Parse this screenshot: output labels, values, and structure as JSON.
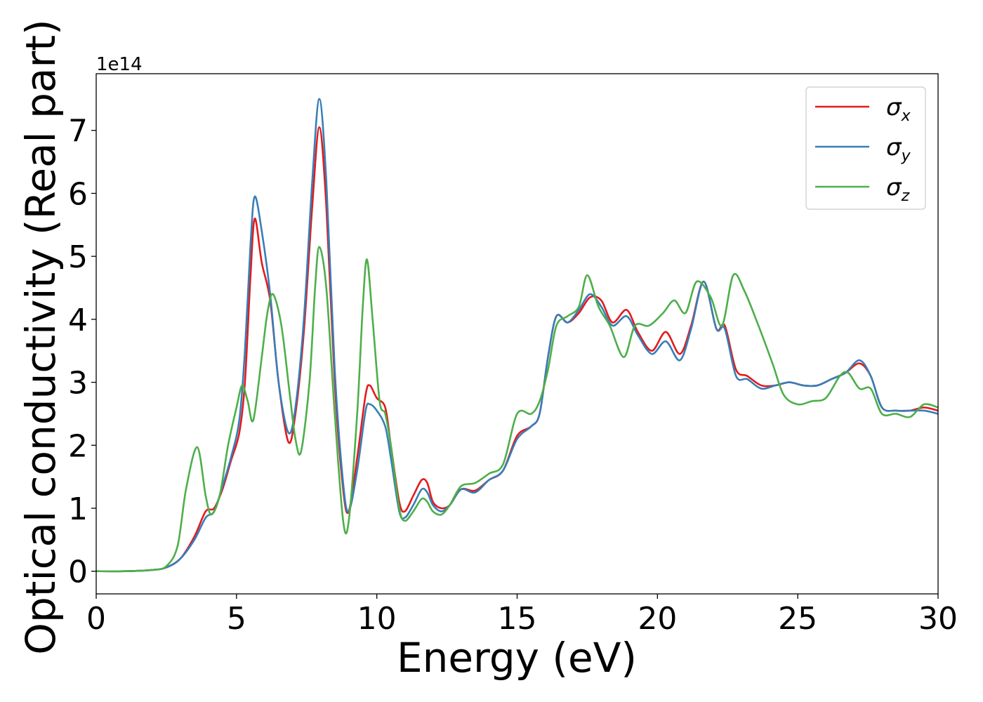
{
  "chart_data": {
    "type": "line",
    "title": "",
    "xlabel": "Energy (eV)",
    "ylabel": "Optical conductivity (Real part)",
    "y_offset_label": "1e14",
    "xlim": [
      0,
      30
    ],
    "ylim": [
      -0.36,
      7.9
    ],
    "x_ticks": [
      0,
      5,
      10,
      15,
      20,
      25,
      30
    ],
    "y_ticks": [
      0,
      1,
      2,
      3,
      4,
      5,
      6,
      7
    ],
    "grid": false,
    "legend_position": "top-right",
    "series": [
      {
        "name": "σx",
        "name_base": "σ",
        "name_sub": "x",
        "color": "#e41a1c",
        "points": [
          [
            0,
            0
          ],
          [
            1,
            0
          ],
          [
            2,
            0.02
          ],
          [
            2.5,
            0.06
          ],
          [
            3,
            0.2
          ],
          [
            3.5,
            0.55
          ],
          [
            3.9,
            0.95
          ],
          [
            4.2,
            1.0
          ],
          [
            4.5,
            1.3
          ],
          [
            4.8,
            1.75
          ],
          [
            5.1,
            2.2
          ],
          [
            5.3,
            3.0
          ],
          [
            5.5,
            4.7
          ],
          [
            5.65,
            5.6
          ],
          [
            5.9,
            4.9
          ],
          [
            6.2,
            4.3
          ],
          [
            6.5,
            3.0
          ],
          [
            6.85,
            2.05
          ],
          [
            7.1,
            2.5
          ],
          [
            7.4,
            3.8
          ],
          [
            7.7,
            5.8
          ],
          [
            7.95,
            7.05
          ],
          [
            8.2,
            5.8
          ],
          [
            8.5,
            3.0
          ],
          [
            8.8,
            1.3
          ],
          [
            9.0,
            0.95
          ],
          [
            9.3,
            1.8
          ],
          [
            9.6,
            2.8
          ],
          [
            9.75,
            2.95
          ],
          [
            10.0,
            2.75
          ],
          [
            10.3,
            2.6
          ],
          [
            10.5,
            2.0
          ],
          [
            10.8,
            1.1
          ],
          [
            11.0,
            0.95
          ],
          [
            11.3,
            1.2
          ],
          [
            11.6,
            1.45
          ],
          [
            11.8,
            1.4
          ],
          [
            12.0,
            1.1
          ],
          [
            12.3,
            1.0
          ],
          [
            12.6,
            1.05
          ],
          [
            13.0,
            1.3
          ],
          [
            13.5,
            1.28
          ],
          [
            14.0,
            1.45
          ],
          [
            14.5,
            1.6
          ],
          [
            15.0,
            2.15
          ],
          [
            15.5,
            2.3
          ],
          [
            15.8,
            2.5
          ],
          [
            16.1,
            3.4
          ],
          [
            16.4,
            4.05
          ],
          [
            16.8,
            3.95
          ],
          [
            17.2,
            4.1
          ],
          [
            17.6,
            4.35
          ],
          [
            18.0,
            4.3
          ],
          [
            18.4,
            3.95
          ],
          [
            18.9,
            4.15
          ],
          [
            19.3,
            3.8
          ],
          [
            19.8,
            3.5
          ],
          [
            20.3,
            3.8
          ],
          [
            20.8,
            3.45
          ],
          [
            21.2,
            3.9
          ],
          [
            21.65,
            4.6
          ],
          [
            22.1,
            3.85
          ],
          [
            22.4,
            3.9
          ],
          [
            22.8,
            3.2
          ],
          [
            23.2,
            3.1
          ],
          [
            23.7,
            2.95
          ],
          [
            24.2,
            2.95
          ],
          [
            24.7,
            3.0
          ],
          [
            25.2,
            2.95
          ],
          [
            25.7,
            2.95
          ],
          [
            26.2,
            3.05
          ],
          [
            26.7,
            3.15
          ],
          [
            27.2,
            3.3
          ],
          [
            27.6,
            3.1
          ],
          [
            28.0,
            2.6
          ],
          [
            28.5,
            2.55
          ],
          [
            29.0,
            2.55
          ],
          [
            29.5,
            2.6
          ],
          [
            30.0,
            2.55
          ]
        ]
      },
      {
        "name": "σy",
        "name_base": "σ",
        "name_sub": "y",
        "color": "#377eb8",
        "points": [
          [
            0,
            0
          ],
          [
            1,
            0
          ],
          [
            2,
            0.02
          ],
          [
            2.5,
            0.06
          ],
          [
            3,
            0.2
          ],
          [
            3.5,
            0.5
          ],
          [
            3.9,
            0.85
          ],
          [
            4.2,
            0.95
          ],
          [
            4.5,
            1.35
          ],
          [
            4.8,
            1.8
          ],
          [
            5.1,
            2.4
          ],
          [
            5.3,
            3.5
          ],
          [
            5.5,
            5.2
          ],
          [
            5.65,
            5.95
          ],
          [
            5.9,
            5.4
          ],
          [
            6.2,
            4.4
          ],
          [
            6.5,
            3.0
          ],
          [
            6.85,
            2.2
          ],
          [
            7.1,
            2.6
          ],
          [
            7.4,
            4.0
          ],
          [
            7.7,
            6.2
          ],
          [
            7.95,
            7.5
          ],
          [
            8.2,
            6.2
          ],
          [
            8.5,
            3.2
          ],
          [
            8.8,
            1.4
          ],
          [
            9.0,
            0.95
          ],
          [
            9.3,
            1.6
          ],
          [
            9.6,
            2.55
          ],
          [
            9.75,
            2.65
          ],
          [
            10.0,
            2.55
          ],
          [
            10.3,
            2.3
          ],
          [
            10.5,
            1.8
          ],
          [
            10.8,
            0.95
          ],
          [
            11.0,
            0.85
          ],
          [
            11.3,
            1.05
          ],
          [
            11.6,
            1.3
          ],
          [
            11.8,
            1.25
          ],
          [
            12.0,
            1.05
          ],
          [
            12.3,
            0.95
          ],
          [
            12.6,
            1.05
          ],
          [
            13.0,
            1.3
          ],
          [
            13.5,
            1.25
          ],
          [
            14.0,
            1.45
          ],
          [
            14.5,
            1.6
          ],
          [
            15.0,
            2.1
          ],
          [
            15.5,
            2.3
          ],
          [
            15.8,
            2.5
          ],
          [
            16.1,
            3.4
          ],
          [
            16.4,
            4.05
          ],
          [
            16.8,
            3.95
          ],
          [
            17.2,
            4.15
          ],
          [
            17.6,
            4.4
          ],
          [
            18.0,
            4.2
          ],
          [
            18.4,
            3.9
          ],
          [
            18.9,
            4.05
          ],
          [
            19.3,
            3.75
          ],
          [
            19.8,
            3.45
          ],
          [
            20.3,
            3.65
          ],
          [
            20.8,
            3.35
          ],
          [
            21.2,
            3.85
          ],
          [
            21.65,
            4.6
          ],
          [
            22.1,
            3.85
          ],
          [
            22.4,
            3.85
          ],
          [
            22.8,
            3.1
          ],
          [
            23.2,
            3.05
          ],
          [
            23.7,
            2.9
          ],
          [
            24.2,
            2.95
          ],
          [
            24.7,
            3.0
          ],
          [
            25.2,
            2.95
          ],
          [
            25.7,
            2.95
          ],
          [
            26.2,
            3.05
          ],
          [
            26.7,
            3.15
          ],
          [
            27.2,
            3.35
          ],
          [
            27.6,
            3.1
          ],
          [
            28.0,
            2.6
          ],
          [
            28.5,
            2.55
          ],
          [
            29.0,
            2.55
          ],
          [
            29.5,
            2.55
          ],
          [
            30.0,
            2.5
          ]
        ]
      },
      {
        "name": "σz",
        "name_base": "σ",
        "name_sub": "z",
        "color": "#4daf4a",
        "points": [
          [
            0,
            0
          ],
          [
            1,
            0
          ],
          [
            2,
            0.02
          ],
          [
            2.5,
            0.08
          ],
          [
            2.9,
            0.4
          ],
          [
            3.2,
            1.3
          ],
          [
            3.6,
            1.97
          ],
          [
            3.9,
            1.2
          ],
          [
            4.1,
            0.9
          ],
          [
            4.4,
            1.2
          ],
          [
            4.7,
            2.0
          ],
          [
            5.0,
            2.6
          ],
          [
            5.2,
            2.95
          ],
          [
            5.4,
            2.7
          ],
          [
            5.6,
            2.4
          ],
          [
            5.9,
            3.4
          ],
          [
            6.1,
            4.1
          ],
          [
            6.3,
            4.4
          ],
          [
            6.6,
            3.9
          ],
          [
            6.9,
            2.8
          ],
          [
            7.1,
            2.1
          ],
          [
            7.3,
            1.9
          ],
          [
            7.6,
            3.0
          ],
          [
            7.8,
            4.5
          ],
          [
            7.95,
            5.15
          ],
          [
            8.2,
            4.5
          ],
          [
            8.5,
            2.5
          ],
          [
            8.8,
            0.8
          ],
          [
            9.0,
            0.8
          ],
          [
            9.3,
            2.5
          ],
          [
            9.5,
            4.2
          ],
          [
            9.65,
            4.95
          ],
          [
            9.85,
            4.0
          ],
          [
            10.1,
            2.7
          ],
          [
            10.3,
            2.5
          ],
          [
            10.5,
            2.0
          ],
          [
            10.8,
            1.0
          ],
          [
            11.0,
            0.8
          ],
          [
            11.3,
            0.95
          ],
          [
            11.6,
            1.15
          ],
          [
            11.8,
            1.1
          ],
          [
            12.0,
            0.95
          ],
          [
            12.3,
            0.9
          ],
          [
            12.6,
            1.05
          ],
          [
            13.0,
            1.35
          ],
          [
            13.5,
            1.4
          ],
          [
            14.0,
            1.55
          ],
          [
            14.5,
            1.7
          ],
          [
            15.0,
            2.5
          ],
          [
            15.5,
            2.5
          ],
          [
            15.8,
            2.7
          ],
          [
            16.1,
            3.2
          ],
          [
            16.4,
            3.9
          ],
          [
            16.8,
            4.05
          ],
          [
            17.2,
            4.2
          ],
          [
            17.5,
            4.7
          ],
          [
            17.9,
            4.2
          ],
          [
            18.3,
            3.9
          ],
          [
            18.8,
            3.4
          ],
          [
            19.2,
            3.9
          ],
          [
            19.7,
            3.9
          ],
          [
            20.2,
            4.1
          ],
          [
            20.6,
            4.3
          ],
          [
            21.0,
            4.1
          ],
          [
            21.4,
            4.6
          ],
          [
            21.9,
            4.35
          ],
          [
            22.3,
            3.9
          ],
          [
            22.7,
            4.7
          ],
          [
            23.1,
            4.45
          ],
          [
            23.6,
            3.9
          ],
          [
            24.1,
            3.3
          ],
          [
            24.5,
            2.8
          ],
          [
            25.0,
            2.65
          ],
          [
            25.5,
            2.7
          ],
          [
            26.0,
            2.75
          ],
          [
            26.5,
            3.1
          ],
          [
            26.8,
            3.15
          ],
          [
            27.2,
            2.9
          ],
          [
            27.6,
            2.9
          ],
          [
            28.0,
            2.5
          ],
          [
            28.5,
            2.5
          ],
          [
            29.0,
            2.45
          ],
          [
            29.5,
            2.65
          ],
          [
            30.0,
            2.6
          ]
        ]
      }
    ]
  }
}
